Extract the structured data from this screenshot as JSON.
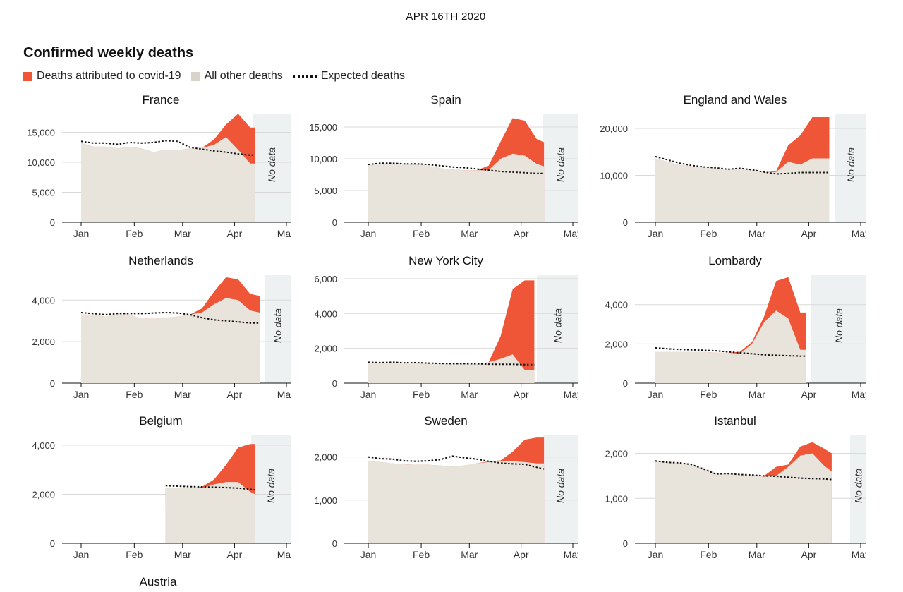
{
  "header": {
    "date": "APR 16TH 2020",
    "title": "Confirmed weekly deaths"
  },
  "legend": {
    "covid": "Deaths attributed to covid-19",
    "other": "All other deaths",
    "expected": "Expected deaths"
  },
  "colors": {
    "covid": "#ef5638",
    "other": "#e8e4dc",
    "expected": "#121212",
    "nodata": "#edf1f2",
    "grid": "#d9d9d9"
  },
  "no_data_label": "No data",
  "months": [
    "Jan",
    "Feb",
    "Mar",
    "Apr",
    "May"
  ],
  "chart_data": [
    {
      "type": "area",
      "title": "France",
      "yticks": [
        0,
        5000,
        10000,
        15000
      ],
      "ytick_labels": [
        "0",
        "5,000",
        "10,000",
        "15,000"
      ],
      "ymax": 18000,
      "data_start": 0,
      "data_end": 14.4,
      "x": [
        0,
        1,
        2,
        3,
        4,
        5,
        6,
        7,
        8,
        9,
        10,
        11,
        12,
        13,
        14,
        14.4
      ],
      "other": [
        13200,
        12600,
        12600,
        12300,
        12600,
        12300,
        11700,
        12100,
        12000,
        12300,
        12400,
        12900,
        14200,
        12100,
        9800,
        9800
      ],
      "total": [
        13200,
        12600,
        12600,
        12300,
        12600,
        12300,
        11700,
        12100,
        12000,
        12300,
        12400,
        13800,
        16300,
        18100,
        15800,
        15800
      ],
      "expected": [
        13500,
        13200,
        13200,
        13000,
        13300,
        13200,
        13300,
        13600,
        13500,
        12500,
        12200,
        11900,
        11700,
        11400,
        11200,
        11200
      ]
    },
    {
      "type": "area",
      "title": "Spain",
      "yticks": [
        0,
        5000,
        10000,
        15000
      ],
      "ytick_labels": [
        "0",
        "5,000",
        "10,000",
        "15,000"
      ],
      "ymax": 17000,
      "data_start": 0,
      "data_end": 14.6,
      "x": [
        0,
        1,
        2,
        3,
        4,
        5,
        6,
        7,
        8,
        9,
        10,
        11,
        12,
        13,
        14,
        14.6
      ],
      "other": [
        9100,
        9200,
        9300,
        9200,
        9100,
        8900,
        8500,
        8300,
        8200,
        8200,
        8200,
        10000,
        10800,
        10500,
        9200,
        8800
      ],
      "total": [
        9100,
        9200,
        9300,
        9200,
        9100,
        8900,
        8500,
        8300,
        8200,
        8200,
        8900,
        12700,
        16400,
        16000,
        13100,
        12600
      ],
      "expected": [
        9100,
        9300,
        9300,
        9200,
        9200,
        9100,
        8900,
        8700,
        8600,
        8400,
        8200,
        8000,
        7900,
        7800,
        7700,
        7700
      ]
    },
    {
      "type": "area",
      "title": "England and Wales",
      "yticks": [
        0,
        10000,
        20000
      ],
      "ytick_labels": [
        "0",
        "10,000",
        "20,000"
      ],
      "ymax": 23000,
      "data_start": 0,
      "data_end": 14.4,
      "x": [
        0,
        1,
        2,
        3,
        4,
        5,
        6,
        7,
        8,
        9,
        10,
        11,
        12,
        13,
        14,
        14.4
      ],
      "other": [
        13600,
        12900,
        12200,
        11900,
        11700,
        11500,
        11200,
        11500,
        11200,
        10600,
        10700,
        12900,
        12300,
        13600,
        13600,
        13600
      ],
      "total": [
        13600,
        12900,
        12200,
        11900,
        11700,
        11500,
        11200,
        11500,
        11200,
        10600,
        10900,
        16400,
        18500,
        22400,
        22400,
        22400
      ],
      "expected": [
        14000,
        13300,
        12600,
        12100,
        11800,
        11600,
        11300,
        11500,
        11200,
        10700,
        10300,
        10400,
        10600,
        10600,
        10600,
        10600
      ]
    },
    {
      "type": "area",
      "title": "Netherlands",
      "yticks": [
        0,
        2000,
        4000
      ],
      "ytick_labels": [
        "0",
        "2,000",
        "4,000"
      ],
      "ymax": 5200,
      "data_start": 0,
      "data_end": 14.8,
      "x": [
        0,
        1,
        2,
        3,
        4,
        5,
        6,
        7,
        8,
        9,
        10,
        11,
        12,
        13,
        14,
        14.8
      ],
      "other": [
        3300,
        3300,
        3200,
        3300,
        3300,
        3100,
        3100,
        3150,
        3200,
        3300,
        3400,
        3800,
        4100,
        4000,
        3500,
        3400
      ],
      "total": [
        3300,
        3300,
        3200,
        3300,
        3300,
        3100,
        3100,
        3150,
        3200,
        3300,
        3600,
        4400,
        5100,
        5000,
        4300,
        4200
      ],
      "expected": [
        3400,
        3350,
        3300,
        3350,
        3350,
        3350,
        3380,
        3400,
        3380,
        3300,
        3150,
        3050,
        3000,
        2950,
        2900,
        2900
      ]
    },
    {
      "type": "area",
      "title": "New York City",
      "yticks": [
        0,
        2000,
        4000,
        6000
      ],
      "ytick_labels": [
        "0",
        "2,000",
        "4,000",
        "6,000"
      ],
      "ymax": 6200,
      "data_start": 0,
      "data_end": 13.8,
      "x": [
        0,
        1,
        2,
        3,
        4,
        5,
        6,
        7,
        8,
        9,
        10,
        11,
        12,
        13,
        13.8
      ],
      "other": [
        1150,
        1150,
        1150,
        1150,
        1150,
        1100,
        1100,
        1100,
        1100,
        1100,
        1200,
        1400,
        1650,
        750,
        750
      ],
      "total": [
        1150,
        1150,
        1150,
        1150,
        1150,
        1100,
        1100,
        1100,
        1100,
        1100,
        1200,
        2700,
        5400,
        5900,
        5900
      ],
      "expected": [
        1200,
        1180,
        1200,
        1170,
        1180,
        1150,
        1130,
        1120,
        1120,
        1110,
        1090,
        1080,
        1080,
        1060,
        1060
      ]
    },
    {
      "type": "area",
      "title": "Lombardy",
      "yticks": [
        0,
        2000,
        4000
      ],
      "ytick_labels": [
        "0",
        "2,000",
        "4,000"
      ],
      "ymax": 5500,
      "data_start": 0,
      "data_end": 12.5,
      "x": [
        0,
        1,
        2,
        3,
        4,
        5,
        6,
        7,
        8,
        9,
        10,
        11,
        12,
        12.5
      ],
      "other": [
        1600,
        1600,
        1600,
        1600,
        1600,
        1550,
        1550,
        1500,
        2000,
        3100,
        3700,
        3300,
        1700,
        1700
      ],
      "total": [
        1600,
        1600,
        1600,
        1600,
        1600,
        1550,
        1550,
        1600,
        2100,
        3400,
        5200,
        5400,
        3600,
        3600
      ],
      "expected": [
        1800,
        1750,
        1720,
        1700,
        1680,
        1650,
        1600,
        1550,
        1500,
        1450,
        1420,
        1400,
        1380,
        1380
      ]
    },
    {
      "type": "area",
      "title": "Belgium",
      "yticks": [
        0,
        2000,
        4000
      ],
      "ytick_labels": [
        "0",
        "2,000",
        "4,000"
      ],
      "ymax": 4400,
      "data_start": 7,
      "data_end": 14.4,
      "x": [
        7,
        8,
        9,
        10,
        11,
        12,
        13,
        14,
        14.4
      ],
      "other": [
        2250,
        2250,
        2250,
        2250,
        2400,
        2500,
        2500,
        2100,
        2000
      ],
      "total": [
        2250,
        2250,
        2250,
        2300,
        2600,
        3200,
        3900,
        4050,
        4050
      ],
      "expected": [
        2350,
        2330,
        2310,
        2300,
        2290,
        2270,
        2250,
        2200,
        2180
      ]
    },
    {
      "type": "area",
      "title": "Sweden",
      "yticks": [
        0,
        1000,
        2000
      ],
      "ytick_labels": [
        "0",
        "1,000",
        "2,000"
      ],
      "ymax": 2500,
      "data_start": 0,
      "data_end": 14.6,
      "x": [
        0,
        1,
        2,
        3,
        4,
        5,
        6,
        7,
        8,
        9,
        10,
        11,
        12,
        13,
        14,
        14.6
      ],
      "other": [
        1900,
        1880,
        1850,
        1830,
        1820,
        1820,
        1800,
        1780,
        1800,
        1850,
        1880,
        1900,
        1900,
        1880,
        1850,
        1850
      ],
      "total": [
        1900,
        1880,
        1850,
        1830,
        1820,
        1820,
        1800,
        1780,
        1800,
        1850,
        1900,
        1920,
        2120,
        2400,
        2450,
        2450
      ],
      "expected": [
        2000,
        1960,
        1950,
        1910,
        1900,
        1910,
        1940,
        2020,
        1980,
        1950,
        1900,
        1860,
        1840,
        1830,
        1760,
        1720
      ]
    },
    {
      "type": "area",
      "title": "Istanbul",
      "yticks": [
        0,
        1000,
        2000
      ],
      "ytick_labels": [
        "0",
        "1,000",
        "2,000"
      ],
      "ymax": 2400,
      "data_start": 0,
      "data_end": 14.6,
      "x": [
        0,
        1,
        2,
        3,
        4,
        5,
        6,
        7,
        8,
        9,
        10,
        11,
        12,
        13,
        14,
        14.6
      ],
      "other": [
        1830,
        1800,
        1790,
        1720,
        1680,
        1550,
        1560,
        1530,
        1520,
        1480,
        1500,
        1700,
        1950,
        2000,
        1720,
        1600
      ],
      "total": [
        1830,
        1800,
        1790,
        1720,
        1680,
        1550,
        1560,
        1530,
        1520,
        1500,
        1700,
        1750,
        2150,
        2250,
        2100,
        2000
      ],
      "expected": [
        1830,
        1800,
        1790,
        1750,
        1650,
        1540,
        1550,
        1530,
        1520,
        1500,
        1490,
        1470,
        1450,
        1440,
        1430,
        1420
      ]
    }
  ],
  "footer_title": "Austria"
}
